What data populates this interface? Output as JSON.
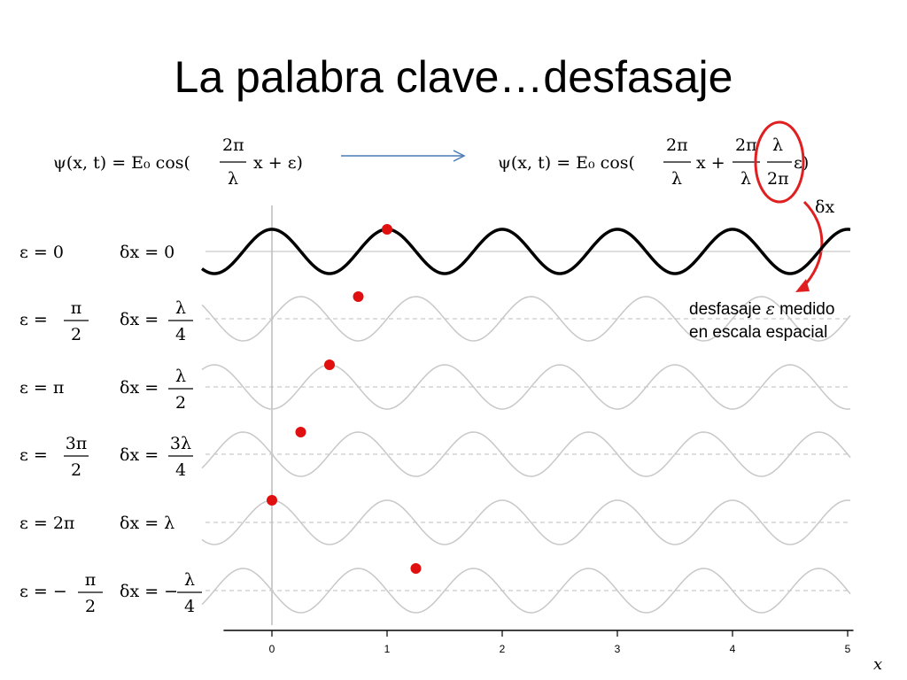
{
  "title": "La palabra clave…desfasaje",
  "equations": {
    "left": {
      "lhs": "ψ(x, t) = E₀ cos(",
      "num": "2π",
      "den": "λ",
      "tail": "x + ε)"
    },
    "right": {
      "lhs": "ψ(x, t) = E₀ cos(",
      "num1": "2π",
      "den1": "λ",
      "mid": "x +",
      "num2": "2π",
      "den2": "λ",
      "num3": "λ",
      "den3": "2π",
      "tail": "ε)"
    }
  },
  "delta_label": "δx",
  "annotation": {
    "line1_pre": "desfasaje ",
    "line1_symbol": "ε",
    "line1_post": " medido",
    "line2": "en escala espacial"
  },
  "rows": [
    {
      "eps": "ε = 0",
      "dx": "δx = 0",
      "shift": 0
    },
    {
      "eps_pre": "ε =",
      "eps_num": "π",
      "eps_den": "2",
      "dx_pre": "δx =",
      "dx_num": "λ",
      "dx_den": "4",
      "shift": 0.25
    },
    {
      "eps": "ε = π",
      "dx_pre": "δx =",
      "dx_num": "λ",
      "dx_den": "2",
      "shift": 0.5
    },
    {
      "eps_pre": "ε =",
      "eps_num": "3π",
      "eps_den": "2",
      "dx_pre": "δx =",
      "dx_num": "3λ",
      "dx_den": "4",
      "shift": 0.75
    },
    {
      "eps": "ε = 2π",
      "dx": "δx = λ",
      "shift": 1
    },
    {
      "eps_pre": "ε = −",
      "eps_num": "π",
      "eps_den": "2",
      "dx_pre": "δx = −",
      "dx_num": "λ",
      "dx_den": "4",
      "shift": -0.25
    }
  ],
  "axis": {
    "ticks": [
      "0",
      "1",
      "2",
      "3",
      "4",
      "5"
    ],
    "label": "x",
    "xmin": -0.6,
    "xmax": 5.05
  },
  "markers": [
    1,
    0.75,
    0.5,
    0.25,
    0,
    1.25
  ],
  "colors": {
    "main_wave": "#000000",
    "ghost_wave": "#c8c8c8",
    "marker": "#e01010",
    "arrow": "#4a7ab5",
    "circle": "#e02020"
  }
}
